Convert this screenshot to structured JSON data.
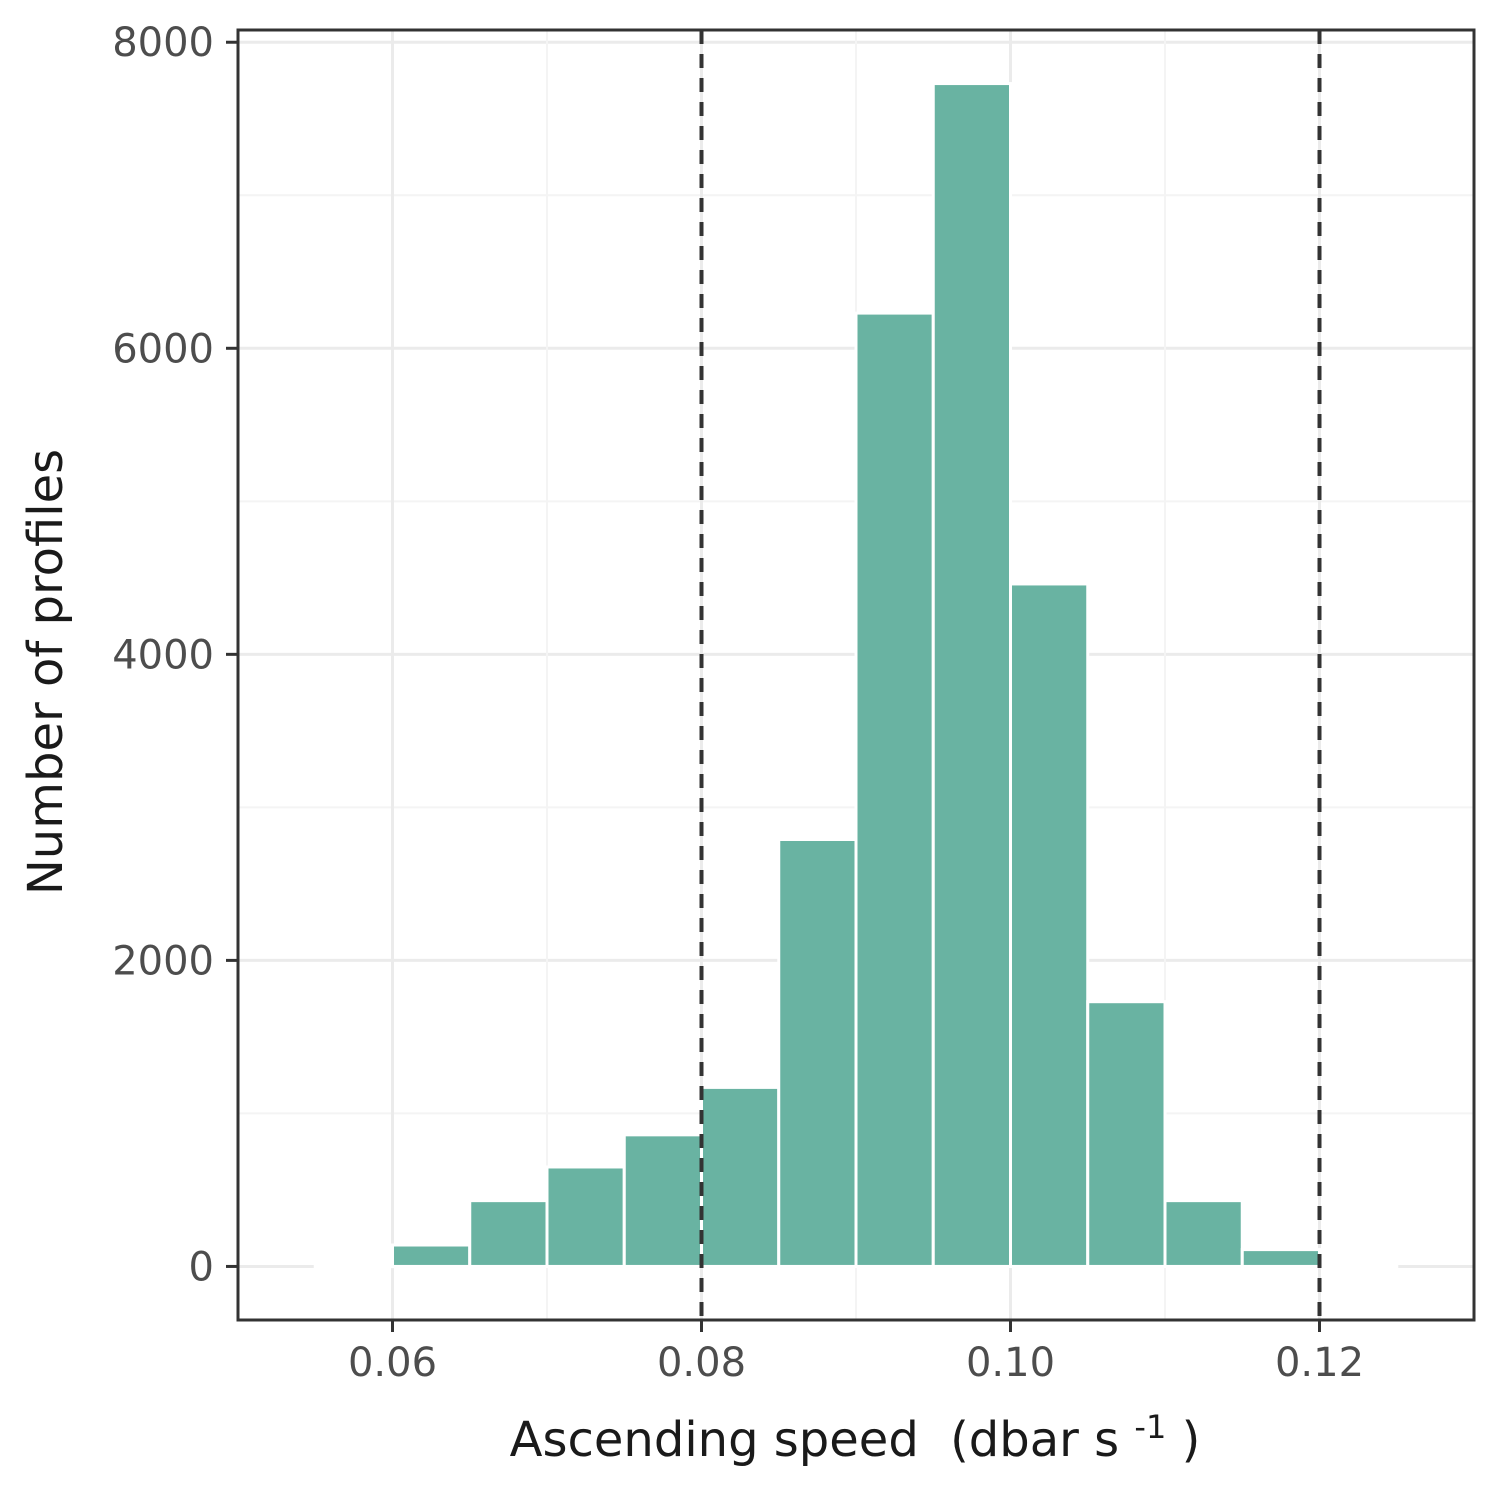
{
  "chart_data": {
    "type": "bar",
    "subtype": "histogram",
    "xlabel": "Ascending speed",
    "xlabel_unit_prefix": "(dbar s",
    "xlabel_unit_superscript": "-1",
    "xlabel_unit_suffix": ")",
    "ylabel": "Number of profiles",
    "xlim": [
      0.05,
      0.13
    ],
    "ylim": [
      -350,
      8080
    ],
    "x_ticks": [
      0.06,
      0.08,
      0.1,
      0.12
    ],
    "x_tick_labels": [
      "0.06",
      "0.08",
      "0.10",
      "0.12"
    ],
    "y_ticks": [
      0,
      2000,
      4000,
      6000,
      8000
    ],
    "y_tick_labels": [
      "0",
      "2000",
      "4000",
      "6000",
      "8000"
    ],
    "bin_width": 0.005,
    "bars": [
      {
        "x_start": 0.055,
        "x_end": 0.06,
        "value": 5
      },
      {
        "x_start": 0.06,
        "x_end": 0.065,
        "value": 140
      },
      {
        "x_start": 0.065,
        "x_end": 0.07,
        "value": 430
      },
      {
        "x_start": 0.07,
        "x_end": 0.075,
        "value": 650
      },
      {
        "x_start": 0.075,
        "x_end": 0.08,
        "value": 860
      },
      {
        "x_start": 0.08,
        "x_end": 0.085,
        "value": 1170
      },
      {
        "x_start": 0.085,
        "x_end": 0.09,
        "value": 2790
      },
      {
        "x_start": 0.09,
        "x_end": 0.095,
        "value": 6230
      },
      {
        "x_start": 0.095,
        "x_end": 0.1,
        "value": 7730
      },
      {
        "x_start": 0.1,
        "x_end": 0.105,
        "value": 4460
      },
      {
        "x_start": 0.105,
        "x_end": 0.11,
        "value": 1730
      },
      {
        "x_start": 0.11,
        "x_end": 0.115,
        "value": 430
      },
      {
        "x_start": 0.115,
        "x_end": 0.12,
        "value": 110
      },
      {
        "x_start": 0.12,
        "x_end": 0.125,
        "value": 5
      }
    ],
    "reference_lines_x": [
      0.08,
      0.12
    ],
    "bar_color": "#69b3a2",
    "bar_outline_color": "#ffffff",
    "reference_line_color": "#333333",
    "grid": true,
    "legend": "none"
  }
}
